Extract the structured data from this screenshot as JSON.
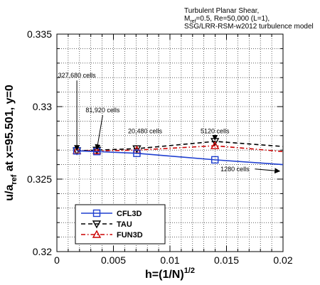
{
  "chart_data": {
    "type": "line",
    "title_lines": [
      "Turbulent Planar Shear,",
      "M_ref=0.5, Re=50,000 (L=1),",
      "SSG/LRR-RSM-w2012 turbulence model"
    ],
    "title_sub": "ref",
    "xlabel": "h=(1/N)",
    "xlabel_sup": "1/2",
    "ylabel": "u/a_ref at x=95.501, y=0",
    "ylabel_parts": [
      "u/a",
      "ref",
      " at x=95.501, y=0"
    ],
    "xlim": [
      0,
      0.02
    ],
    "ylim": [
      0.32,
      0.335
    ],
    "x_ticks": [
      "0",
      "0.005",
      "0.01",
      "0.015",
      "0.02"
    ],
    "y_ticks": [
      "0.32",
      "0.325",
      "0.33",
      "0.335"
    ],
    "grid": true,
    "legend_position": "bottom-left",
    "series": [
      {
        "name": "CFL3D",
        "color": "#1f3fd0",
        "dash": "solid",
        "marker": "square",
        "x": [
          0.0017678,
          0.0035355,
          0.0070711,
          0.0139754,
          0.02
        ],
        "y": [
          0.32695,
          0.3269,
          0.32678,
          0.32633,
          0.326
        ],
        "markers_at": [
          0,
          1,
          2,
          3
        ]
      },
      {
        "name": "TAU",
        "color": "#000000",
        "dash": "dash",
        "marker": "triangle-down",
        "x": [
          0.0017678,
          0.0035355,
          0.0070711,
          0.0139754,
          0.02
        ],
        "y": [
          0.32695,
          0.327,
          0.3271,
          0.3276,
          0.32725
        ],
        "markers_at": [
          0,
          1,
          2,
          3
        ]
      },
      {
        "name": "FUN3D",
        "color": "#cc0000",
        "dash": "dashdot",
        "marker": "triangle-up",
        "x": [
          0.0017678,
          0.0035355,
          0.0070711,
          0.0139754,
          0.02
        ],
        "y": [
          0.32695,
          0.32695,
          0.327,
          0.3273,
          0.3269
        ],
        "markers_at": [
          0,
          1,
          2,
          3
        ]
      }
    ],
    "annotations": [
      {
        "text": "327,680 cells",
        "x": 0.0017678,
        "y": 0.332,
        "arrow_to": [
          0.0017678,
          0.327
        ]
      },
      {
        "text": "81,920 cells",
        "x": 0.00405,
        "y": 0.3296,
        "arrow_to": [
          0.0035355,
          0.32705
        ]
      },
      {
        "text": "20,480 cells",
        "x": 0.0078,
        "y": 0.32815,
        "arrow_to": null
      },
      {
        "text": "5120 cells",
        "x": 0.0139754,
        "y": 0.32815,
        "arrow_to": [
          0.0139754,
          0.3277
        ]
      },
      {
        "text": "1280 cells",
        "x": 0.01575,
        "y": 0.32555,
        "arrow_to": [
          0.0197,
          0.32555
        ]
      }
    ]
  }
}
